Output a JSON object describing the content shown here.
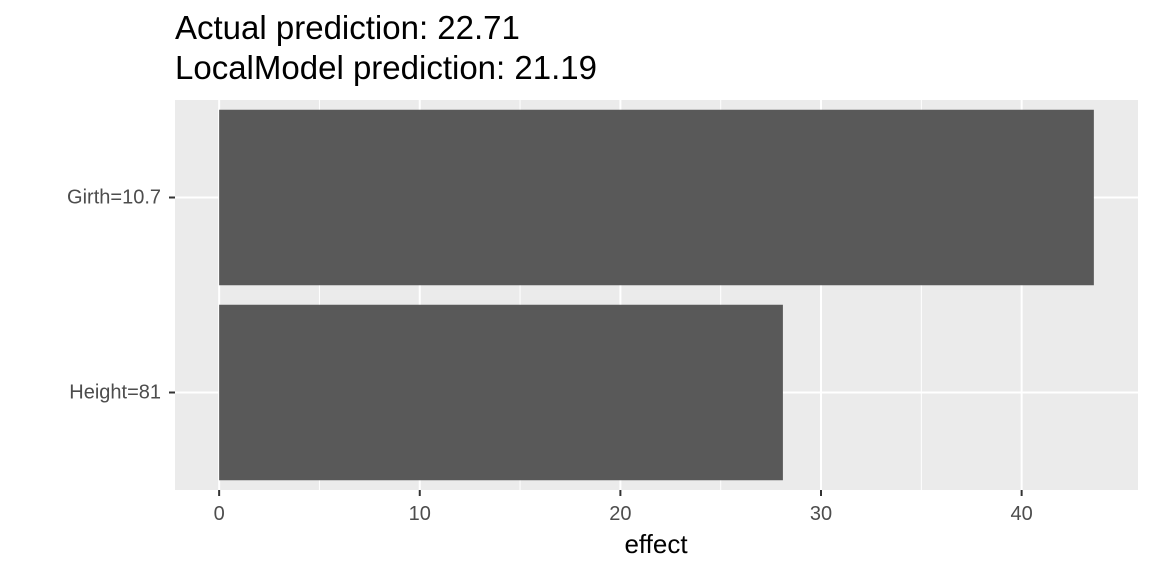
{
  "chart_data": {
    "type": "bar",
    "orientation": "horizontal",
    "title": [
      "Actual prediction: 22.71",
      "LocalModel prediction: 21.19"
    ],
    "categories": [
      "Girth=10.7",
      "Height=81"
    ],
    "values": [
      43.6,
      28.1
    ],
    "xlabel": "effect",
    "ylabel": "",
    "xlim": [
      -2.2,
      45.8
    ],
    "xticks": [
      0,
      10,
      20,
      30,
      40
    ],
    "grid": true,
    "colors": {
      "bar": "#595959",
      "panel": "#ebebeb",
      "grid": "#ffffff",
      "tick_text": "#4d4d4d",
      "axis_title": "#000000"
    }
  }
}
